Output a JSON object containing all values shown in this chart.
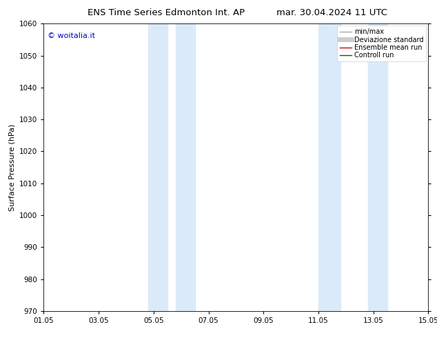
{
  "title_left": "ENS Time Series Edmonton Int. AP",
  "title_right": "mar. 30.04.2024 11 UTC",
  "ylabel": "Surface Pressure (hPa)",
  "ylim": [
    970,
    1060
  ],
  "yticks": [
    970,
    980,
    990,
    1000,
    1010,
    1020,
    1030,
    1040,
    1050,
    1060
  ],
  "xlim_start": 0,
  "xlim_end": 14,
  "xtick_labels": [
    "01.05",
    "03.05",
    "05.05",
    "07.05",
    "09.05",
    "11.05",
    "13.05",
    "15.05"
  ],
  "xtick_positions": [
    0,
    2,
    4,
    6,
    8,
    10,
    12,
    14
  ],
  "shaded_bands": [
    {
      "x_start": 3.8,
      "x_end": 4.5
    },
    {
      "x_start": 4.8,
      "x_end": 5.5
    },
    {
      "x_start": 10.0,
      "x_end": 10.8
    },
    {
      "x_start": 11.8,
      "x_end": 12.5
    }
  ],
  "band_color": "#daeaf8",
  "background_color": "#ffffff",
  "watermark_text": "© woitalia.it",
  "watermark_color": "#0000cc",
  "legend_entries": [
    {
      "label": "min/max",
      "color": "#aaaaaa",
      "lw": 1.0
    },
    {
      "label": "Deviazione standard",
      "color": "#cccccc",
      "lw": 5
    },
    {
      "label": "Ensemble mean run",
      "color": "#cc0000",
      "lw": 1.0
    },
    {
      "label": "Controll run",
      "color": "#006600",
      "lw": 1.0
    }
  ],
  "title_fontsize": 9.5,
  "label_fontsize": 8,
  "tick_fontsize": 7.5,
  "legend_fontsize": 7
}
